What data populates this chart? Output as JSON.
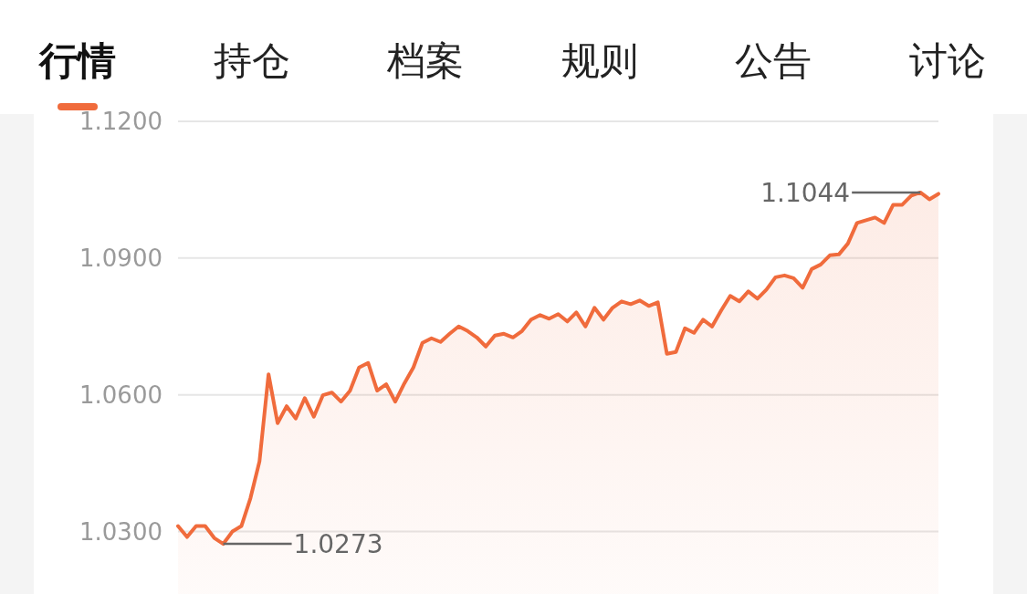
{
  "chart_data": {
    "type": "area",
    "color": "#f06b3c",
    "categories": [
      null,
      null,
      null,
      null,
      null,
      null,
      null,
      null,
      null,
      null,
      null,
      null,
      null,
      null,
      null,
      null,
      null,
      null,
      null,
      null,
      null,
      null,
      null,
      null,
      null,
      null,
      null,
      null,
      null,
      null,
      null,
      null,
      null,
      null,
      null,
      null,
      null,
      null,
      null,
      null,
      null,
      null,
      null,
      null,
      null,
      null,
      null,
      null,
      null,
      null,
      null,
      null,
      null,
      null,
      null,
      null,
      null,
      null,
      null,
      null,
      null,
      null,
      null,
      null,
      null,
      null,
      null,
      null,
      null,
      null,
      null,
      null,
      null,
      null,
      null,
      null,
      null,
      null,
      null,
      null,
      null,
      null,
      null,
      null,
      null
    ],
    "values": [
      1.0312,
      1.0288,
      1.0312,
      1.0312,
      1.0286,
      1.0273,
      1.03,
      1.0312,
      1.0373,
      1.0454,
      1.0645,
      1.0538,
      1.0575,
      1.0548,
      1.0593,
      1.0552,
      1.0599,
      1.0605,
      1.0585,
      1.0609,
      1.066,
      1.067,
      1.0609,
      1.0623,
      1.0585,
      1.0625,
      1.066,
      1.0714,
      1.0724,
      1.0716,
      1.0734,
      1.075,
      1.074,
      1.0726,
      1.0706,
      1.073,
      1.0734,
      1.0726,
      1.074,
      1.0765,
      1.0775,
      1.0767,
      1.0777,
      1.0761,
      1.0781,
      1.075,
      1.0791,
      1.0765,
      1.0791,
      1.0805,
      1.0799,
      1.0807,
      1.0795,
      1.0803,
      1.069,
      1.0694,
      1.0746,
      1.0736,
      1.0765,
      1.075,
      1.0785,
      1.0817,
      1.0805,
      1.0827,
      1.0811,
      1.0831,
      1.0858,
      1.0862,
      1.0856,
      1.0835,
      1.0876,
      1.0886,
      1.0906,
      1.0908,
      1.0932,
      1.0977,
      1.0983,
      1.0989,
      1.0977,
      1.1017,
      1.1017,
      1.1037,
      1.1044,
      1.1029,
      1.1041
    ],
    "ylim": [
      1.0163,
      1.12
    ],
    "yticks": [
      {
        "value": 1.03,
        "label": "1.0300"
      },
      {
        "value": 1.06,
        "label": "1.0600"
      },
      {
        "value": 1.09,
        "label": "1.0900"
      },
      {
        "value": 1.12,
        "label": "1.1200"
      }
    ],
    "grid": "y",
    "annotations": [
      "行情",
      "持仓",
      "档案",
      "规则",
      "公告",
      "讨论",
      "1.1044",
      "1.0273"
    ]
  }
}
